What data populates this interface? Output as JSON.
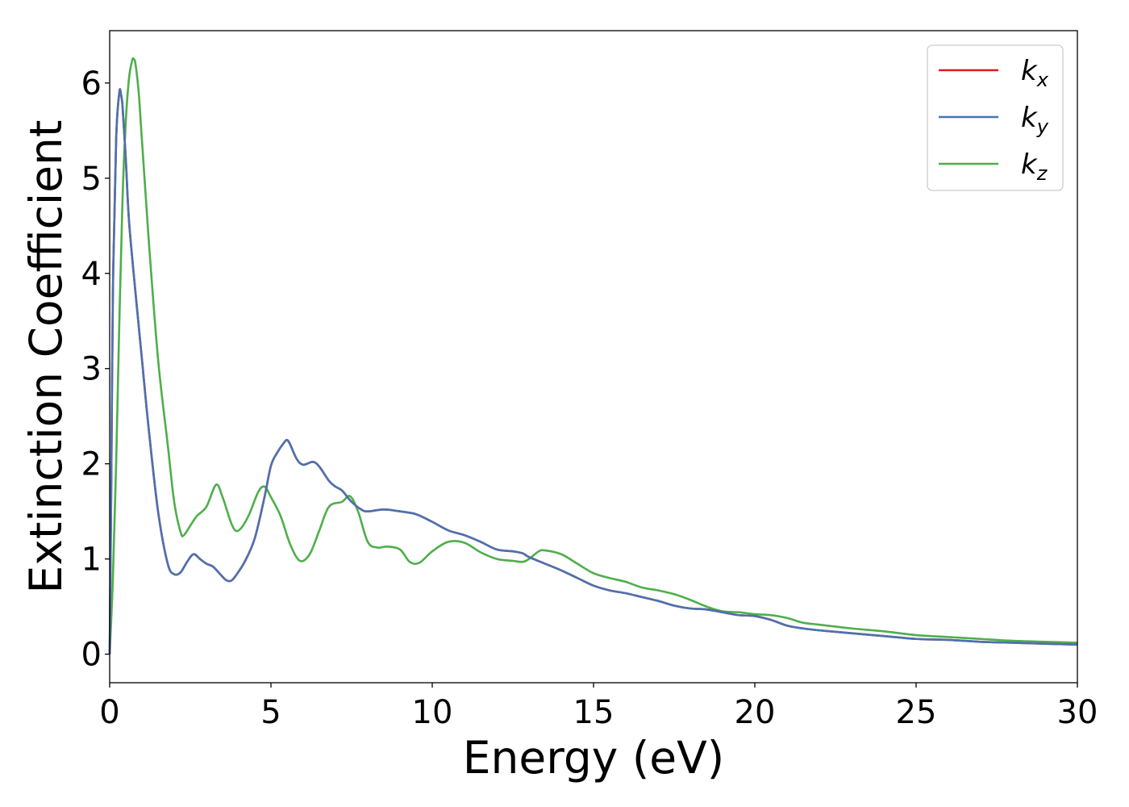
{
  "chart_data": {
    "type": "line",
    "xlabel": "Energy (eV)",
    "ylabel": "Extinction Coefficient",
    "xlim": [
      0,
      30
    ],
    "ylim": [
      -0.3,
      6.55
    ],
    "x_ticks": [
      0,
      5,
      10,
      15,
      20,
      25,
      30
    ],
    "y_ticks": [
      0,
      1,
      2,
      3,
      4,
      5,
      6
    ],
    "grid": false,
    "legend_position": "top-right",
    "series": [
      {
        "name": "k_x",
        "legend_base": "k",
        "legend_sub": "x",
        "color": "#e41a1c",
        "x": [
          0,
          0.05,
          0.1,
          0.2,
          0.3,
          0.35,
          0.4,
          0.5,
          0.6,
          0.8,
          1.0,
          1.2,
          1.5,
          1.8,
          2.0,
          2.2,
          2.4,
          2.6,
          2.8,
          3.0,
          3.2,
          3.4,
          3.6,
          3.75,
          3.9,
          4.2,
          4.5,
          4.8,
          5.0,
          5.2,
          5.4,
          5.5,
          5.6,
          5.8,
          6.0,
          6.3,
          6.5,
          6.8,
          7.0,
          7.2,
          7.5,
          7.8,
          8.0,
          8.5,
          9.0,
          9.5,
          10.0,
          10.5,
          11.0,
          11.5,
          12.0,
          12.5,
          12.8,
          13.0,
          13.5,
          14.0,
          14.5,
          15.0,
          15.5,
          16.0,
          16.5,
          17.0,
          17.5,
          18.0,
          18.5,
          19.0,
          19.5,
          20.0,
          20.5,
          21.0,
          21.5,
          22.0,
          23.0,
          24.0,
          25.0,
          26.0,
          27.0,
          28.0,
          29.0,
          30.0
        ],
        "values": [
          0,
          1.8,
          3.8,
          5.4,
          5.9,
          5.88,
          5.75,
          5.2,
          4.55,
          3.8,
          3.1,
          2.4,
          1.5,
          0.95,
          0.84,
          0.86,
          0.97,
          1.05,
          1.0,
          0.95,
          0.92,
          0.85,
          0.78,
          0.77,
          0.82,
          0.98,
          1.22,
          1.65,
          1.98,
          2.12,
          2.22,
          2.25,
          2.2,
          2.05,
          1.99,
          2.02,
          1.97,
          1.82,
          1.76,
          1.72,
          1.6,
          1.52,
          1.5,
          1.52,
          1.5,
          1.47,
          1.39,
          1.3,
          1.25,
          1.18,
          1.1,
          1.08,
          1.06,
          1.02,
          0.95,
          0.88,
          0.8,
          0.72,
          0.67,
          0.64,
          0.6,
          0.56,
          0.51,
          0.48,
          0.47,
          0.44,
          0.41,
          0.4,
          0.36,
          0.3,
          0.27,
          0.25,
          0.22,
          0.19,
          0.16,
          0.15,
          0.13,
          0.12,
          0.11,
          0.1
        ]
      },
      {
        "name": "k_y",
        "legend_base": "k",
        "legend_sub": "y",
        "color": "#4a72b0",
        "x": [
          0,
          0.05,
          0.1,
          0.2,
          0.3,
          0.35,
          0.4,
          0.5,
          0.6,
          0.8,
          1.0,
          1.2,
          1.5,
          1.8,
          2.0,
          2.2,
          2.4,
          2.6,
          2.8,
          3.0,
          3.2,
          3.4,
          3.6,
          3.75,
          3.9,
          4.2,
          4.5,
          4.8,
          5.0,
          5.2,
          5.4,
          5.5,
          5.6,
          5.8,
          6.0,
          6.3,
          6.5,
          6.8,
          7.0,
          7.2,
          7.5,
          7.8,
          8.0,
          8.5,
          9.0,
          9.5,
          10.0,
          10.5,
          11.0,
          11.5,
          12.0,
          12.5,
          12.8,
          13.0,
          13.5,
          14.0,
          14.5,
          15.0,
          15.5,
          16.0,
          16.5,
          17.0,
          17.5,
          18.0,
          18.5,
          19.0,
          19.5,
          20.0,
          20.5,
          21.0,
          21.5,
          22.0,
          23.0,
          24.0,
          25.0,
          26.0,
          27.0,
          28.0,
          29.0,
          30.0
        ],
        "values": [
          0,
          1.8,
          3.8,
          5.4,
          5.9,
          5.88,
          5.75,
          5.2,
          4.55,
          3.8,
          3.1,
          2.4,
          1.5,
          0.95,
          0.84,
          0.86,
          0.97,
          1.05,
          1.0,
          0.95,
          0.92,
          0.85,
          0.78,
          0.77,
          0.82,
          0.98,
          1.22,
          1.65,
          1.98,
          2.12,
          2.22,
          2.25,
          2.2,
          2.05,
          1.99,
          2.02,
          1.97,
          1.82,
          1.76,
          1.72,
          1.6,
          1.52,
          1.5,
          1.52,
          1.5,
          1.47,
          1.39,
          1.3,
          1.25,
          1.18,
          1.1,
          1.08,
          1.06,
          1.02,
          0.95,
          0.88,
          0.8,
          0.72,
          0.67,
          0.64,
          0.6,
          0.56,
          0.51,
          0.48,
          0.47,
          0.44,
          0.41,
          0.4,
          0.36,
          0.3,
          0.27,
          0.25,
          0.22,
          0.19,
          0.16,
          0.15,
          0.13,
          0.12,
          0.11,
          0.1
        ]
      },
      {
        "name": "k_z",
        "legend_base": "k",
        "legend_sub": "z",
        "color": "#4daf4a",
        "x": [
          0,
          0.1,
          0.2,
          0.3,
          0.4,
          0.5,
          0.6,
          0.7,
          0.75,
          0.8,
          0.9,
          1.0,
          1.2,
          1.5,
          1.8,
          2.0,
          2.2,
          2.3,
          2.5,
          2.7,
          3.0,
          3.3,
          3.5,
          3.8,
          4.0,
          4.3,
          4.6,
          4.8,
          5.0,
          5.3,
          5.6,
          5.9,
          6.2,
          6.5,
          6.8,
          7.2,
          7.45,
          7.7,
          8.0,
          8.3,
          8.6,
          9.0,
          9.3,
          9.6,
          10.0,
          10.5,
          11.0,
          11.5,
          12.0,
          12.5,
          12.8,
          13.0,
          13.3,
          13.5,
          14.0,
          14.5,
          15.0,
          15.5,
          16.0,
          16.5,
          17.0,
          17.5,
          18.0,
          18.5,
          19.0,
          19.5,
          20.0,
          20.5,
          21.0,
          21.5,
          22.0,
          23.0,
          24.0,
          25.0,
          26.0,
          27.0,
          28.0,
          29.0,
          30.0
        ],
        "values": [
          0,
          0.8,
          2.0,
          3.5,
          4.8,
          5.6,
          6.05,
          6.24,
          6.25,
          6.2,
          5.9,
          5.4,
          4.4,
          3.1,
          2.2,
          1.6,
          1.28,
          1.25,
          1.35,
          1.45,
          1.55,
          1.78,
          1.65,
          1.35,
          1.3,
          1.45,
          1.7,
          1.76,
          1.65,
          1.45,
          1.15,
          0.98,
          1.05,
          1.3,
          1.55,
          1.6,
          1.66,
          1.5,
          1.18,
          1.12,
          1.13,
          1.1,
          0.97,
          0.96,
          1.08,
          1.18,
          1.17,
          1.07,
          1.0,
          0.98,
          0.97,
          1.0,
          1.08,
          1.09,
          1.05,
          0.95,
          0.85,
          0.8,
          0.76,
          0.7,
          0.67,
          0.63,
          0.57,
          0.5,
          0.45,
          0.44,
          0.42,
          0.41,
          0.38,
          0.33,
          0.31,
          0.27,
          0.24,
          0.2,
          0.18,
          0.16,
          0.14,
          0.13,
          0.12
        ]
      }
    ]
  }
}
